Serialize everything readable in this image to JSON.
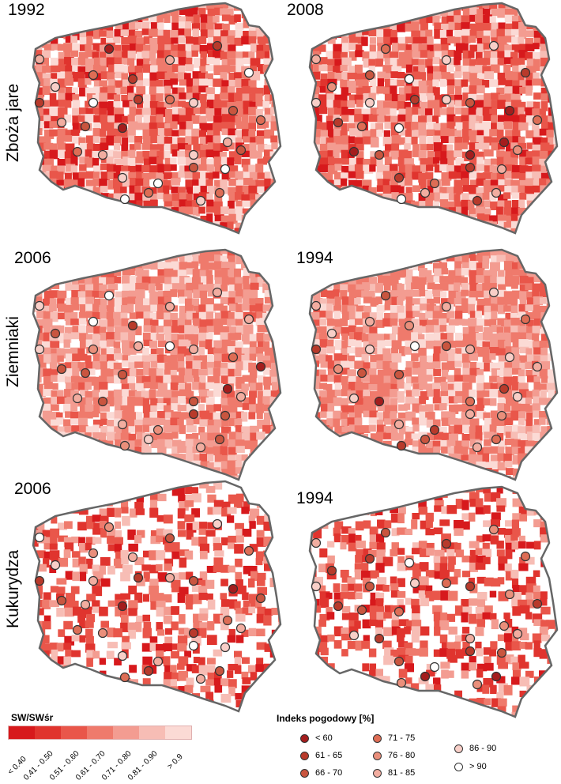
{
  "rows": [
    {
      "label": "Zboża jare",
      "panels": [
        {
          "year": "1992",
          "tone": "c3"
        },
        {
          "year": "2008",
          "tone": "c3"
        }
      ]
    },
    {
      "label": "Ziemniaki",
      "panels": [
        {
          "year": "2006",
          "tone": "c4"
        },
        {
          "year": "1994",
          "tone": "c4"
        }
      ]
    },
    {
      "label": "Kukurydza",
      "panels": [
        {
          "year": "2006",
          "tone": "c2"
        },
        {
          "year": "1994",
          "tone": "c2"
        }
      ]
    }
  ],
  "sw_legend": {
    "title": "SW/SWśr",
    "classes": [
      {
        "label": "< 0.40",
        "color": "#d7191c"
      },
      {
        "label": "0.41 - 0.50",
        "color": "#e0342e"
      },
      {
        "label": "0.51 - 0.60",
        "color": "#e9564a"
      },
      {
        "label": "0.61 - 0.70",
        "color": "#ef7a6c"
      },
      {
        "label": "0.71 - 0.80",
        "color": "#f39c91"
      },
      {
        "label": "0.81 - 0.90",
        "color": "#f7bdb5"
      },
      {
        "label": "> 0.9",
        "color": "#fbdad5"
      }
    ]
  },
  "index_legend": {
    "title": "Indeks pogodowy [%]",
    "classes": [
      {
        "label": "< 60",
        "color": "#a41d1d"
      },
      {
        "label": "61 - 65",
        "color": "#b83a2b"
      },
      {
        "label": "66 - 70",
        "color": "#c9553f"
      },
      {
        "label": "71 - 75",
        "color": "#de6d55"
      },
      {
        "label": "76 - 80",
        "color": "#ea8f7b"
      },
      {
        "label": "81 - 85",
        "color": "#f2ada0"
      },
      {
        "label": "86 - 90",
        "color": "#f8cfc8"
      },
      {
        "label": "> 90",
        "color": "#ffffff"
      }
    ]
  }
}
